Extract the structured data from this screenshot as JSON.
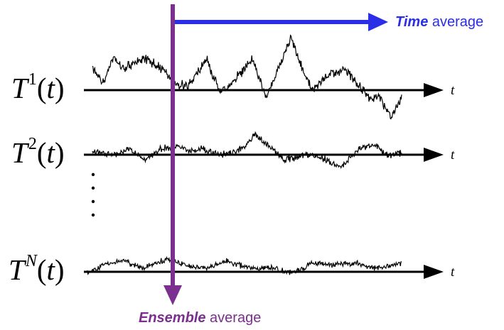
{
  "rows": [
    {
      "symbol": "T",
      "superscript": "1",
      "argument": "t"
    },
    {
      "symbol": "T",
      "superscript": "2",
      "argument": "t"
    },
    {
      "symbol": "T",
      "superscript": "N",
      "argument": "t"
    }
  ],
  "axis_label": "t",
  "time_average": {
    "emphasis": "Time",
    "rest": " average",
    "color": "#2a2ee6"
  },
  "ensemble_average": {
    "emphasis": "Ensemble",
    "rest": " average",
    "color": "#7b2f8f"
  },
  "ellipsis": "⋮",
  "colors": {
    "traces": "#000000",
    "axes": "#000000"
  }
}
